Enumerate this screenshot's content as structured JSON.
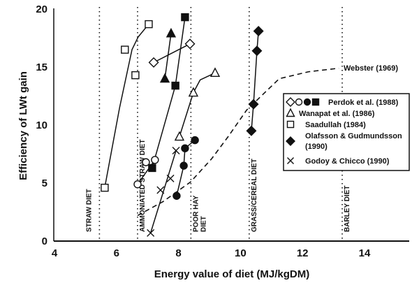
{
  "chart_data": {
    "type": "scatter",
    "xlabel": "Energy value of diet (MJ/kgDM)",
    "ylabel": "Efficiency of LWt gain",
    "xlim": [
      4,
      15
    ],
    "ylim": [
      0,
      20
    ],
    "xticks": [
      "4",
      "6",
      "8",
      "10",
      "12",
      "14"
    ],
    "yticks": [
      "0",
      "5",
      "10",
      "15",
      "20"
    ],
    "grid": false,
    "legend_position": "right",
    "legend": [
      {
        "markers": [
          "open-diamond",
          "open-circle",
          "filled-circle",
          "filled-square"
        ],
        "label": "Perdok et al. (1988)"
      },
      {
        "markers": [
          "open-triangle"
        ],
        "label": "Wanapat et al. (1986)"
      },
      {
        "markers": [
          "open-square"
        ],
        "label": "Saadullah (1984)"
      },
      {
        "markers": [
          "filled-diamond"
        ],
        "label": "Olafsson & Gudmundsson (1990)"
      },
      {
        "markers": [
          "x"
        ],
        "label": "Godoy & Chicco (1990)"
      }
    ],
    "diet_dividers": [
      {
        "x": 5.45,
        "label": "STRAW DIET"
      },
      {
        "x": 6.68,
        "label": "AMMONIATED STRAW DIET"
      },
      {
        "x": 8.4,
        "label": "POOR HAY DIET"
      },
      {
        "x": 10.28,
        "label": "GRASS/CEREAL DIET"
      },
      {
        "x": 13.28,
        "label": "BARLEY DIET"
      }
    ],
    "series": [
      {
        "marker": "open-square",
        "points": [
          [
            5.62,
            4.6
          ],
          [
            6.27,
            16.5
          ],
          [
            6.61,
            14.3
          ],
          [
            7.04,
            18.7
          ]
        ],
        "line": [
          [
            5.62,
            4.6
          ],
          [
            6.1,
            11.5
          ],
          [
            6.5,
            16.5
          ],
          [
            6.7,
            17.6
          ],
          [
            7.04,
            18.7
          ]
        ]
      },
      {
        "marker": "open-diamond",
        "points": [
          [
            7.2,
            15.4
          ],
          [
            8.37,
            17.0
          ]
        ],
        "line": [
          [
            7.2,
            15.4
          ],
          [
            8.37,
            17.0
          ]
        ]
      },
      {
        "marker": "filled-triangle",
        "points": [
          [
            7.56,
            14.0
          ],
          [
            7.76,
            17.9
          ]
        ],
        "line": [
          [
            7.56,
            14.0
          ],
          [
            7.76,
            17.9
          ]
        ]
      },
      {
        "marker": "filled-square",
        "points": [
          [
            8.21,
            19.3
          ],
          [
            7.9,
            13.4
          ],
          [
            7.15,
            6.3
          ]
        ],
        "line": [
          [
            7.15,
            6.3
          ],
          [
            7.9,
            13.4
          ],
          [
            8.21,
            19.3
          ]
        ]
      },
      {
        "marker": "open-circle",
        "points": [
          [
            6.68,
            4.9
          ],
          [
            6.95,
            6.8
          ],
          [
            7.24,
            7.0
          ]
        ],
        "line": [
          [
            6.68,
            4.9
          ],
          [
            7.24,
            7.0
          ]
        ]
      },
      {
        "marker": "filled-circle",
        "points": [
          [
            7.94,
            3.9
          ],
          [
            8.17,
            6.5
          ],
          [
            8.21,
            8.0
          ],
          [
            8.53,
            8.7
          ]
        ],
        "line": [
          [
            7.94,
            3.9
          ],
          [
            8.17,
            6.5
          ],
          [
            8.21,
            8.0
          ],
          [
            8.53,
            8.7
          ]
        ]
      },
      {
        "marker": "x",
        "points": [
          [
            7.1,
            0.7
          ],
          [
            7.42,
            4.4
          ],
          [
            7.74,
            5.4
          ],
          [
            7.92,
            7.8
          ]
        ],
        "line": [
          [
            7.1,
            0.7
          ],
          [
            7.92,
            7.8
          ]
        ]
      },
      {
        "marker": "open-triangle",
        "points": [
          [
            8.03,
            9.0
          ],
          [
            8.48,
            12.8
          ],
          [
            9.18,
            14.5
          ]
        ],
        "line": [
          [
            8.03,
            9.0
          ],
          [
            8.48,
            12.8
          ],
          [
            8.7,
            13.9
          ],
          [
            9.18,
            14.5
          ]
        ]
      },
      {
        "marker": "filled-diamond",
        "points": [
          [
            10.35,
            9.5
          ],
          [
            10.42,
            11.8
          ],
          [
            10.53,
            16.4
          ],
          [
            10.58,
            18.1
          ]
        ],
        "line": [
          [
            10.35,
            9.5
          ],
          [
            10.42,
            11.8
          ],
          [
            10.53,
            16.4
          ],
          [
            10.58,
            18.1
          ]
        ]
      }
    ],
    "reference_curve": {
      "label": "Webster (1969)",
      "style": "dashed",
      "points": [
        [
          6.68,
          2.2
        ],
        [
          7.5,
          3.4
        ],
        [
          8.39,
          5.1
        ],
        [
          9.07,
          7.1
        ],
        [
          9.6,
          9.0
        ],
        [
          10.2,
          11.3
        ],
        [
          11.25,
          14.0
        ],
        [
          12.2,
          14.6
        ],
        [
          13.17,
          14.9
        ]
      ]
    }
  }
}
